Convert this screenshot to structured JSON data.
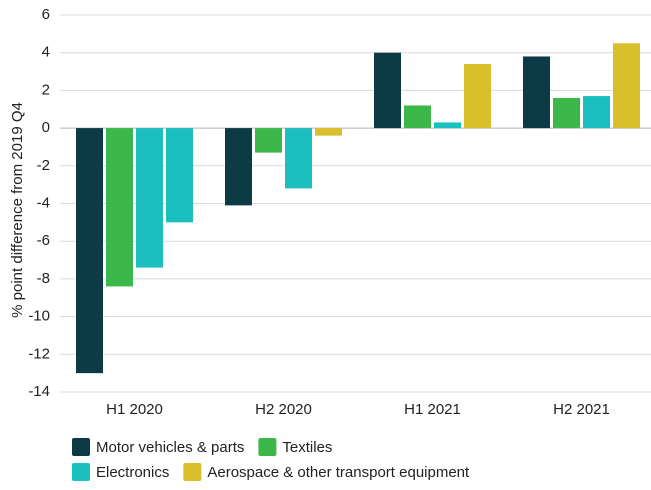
{
  "chart_data": {
    "type": "bar",
    "ylabel": "% point difference from 2019 Q4",
    "categories": [
      "H1 2020",
      "H2 2020",
      "H1 2021",
      "H2 2021"
    ],
    "series": [
      {
        "name": "Motor vehicles & parts",
        "color": "#0d3b45",
        "values": [
          -13.0,
          -4.1,
          4.0,
          3.8
        ]
      },
      {
        "name": "Textiles",
        "color": "#3cb84a",
        "values": [
          -8.4,
          -1.3,
          1.2,
          1.6
        ]
      },
      {
        "name": "Electronics",
        "color": "#1bbfbf",
        "values": [
          -7.4,
          -3.2,
          0.3,
          1.7
        ]
      },
      {
        "name": "Aerospace & other transport equipment",
        "color": "#d9bf2b",
        "colors": [
          "#1bbfbf",
          "#d9bf2b",
          "#d9bf2b",
          "#d9bf2b"
        ],
        "values": [
          -5.0,
          -0.4,
          3.4,
          4.5
        ]
      }
    ],
    "ylim": [
      -14,
      6
    ],
    "yticks": [
      -14,
      -12,
      -10,
      -8,
      -6,
      -4,
      -2,
      0,
      2,
      4,
      6
    ],
    "grid": true,
    "legend": "bottom"
  }
}
